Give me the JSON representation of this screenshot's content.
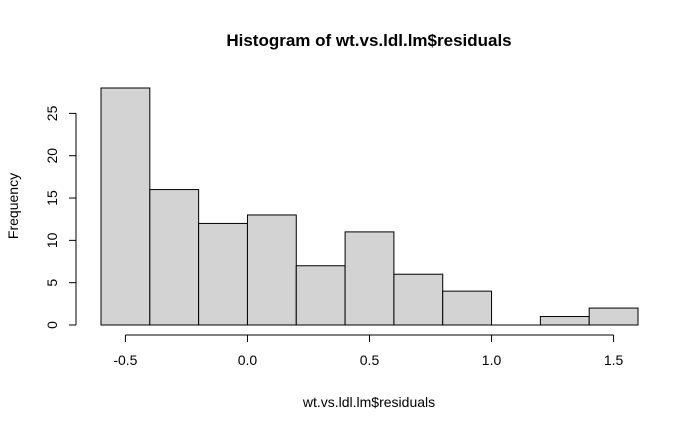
{
  "chart_data": {
    "type": "bar",
    "title": "Histogram of wt.vs.ldl.lm$residuals",
    "xlabel": "wt.vs.ldl.lm$residuals",
    "ylabel": "Frequency",
    "bins": [
      {
        "start": -0.6,
        "end": -0.4,
        "count": 28
      },
      {
        "start": -0.4,
        "end": -0.2,
        "count": 16
      },
      {
        "start": -0.2,
        "end": 0.0,
        "count": 12
      },
      {
        "start": 0.0,
        "end": 0.2,
        "count": 13
      },
      {
        "start": 0.2,
        "end": 0.4,
        "count": 7
      },
      {
        "start": 0.4,
        "end": 0.6,
        "count": 11
      },
      {
        "start": 0.6,
        "end": 0.8,
        "count": 6
      },
      {
        "start": 0.8,
        "end": 1.0,
        "count": 4
      },
      {
        "start": 1.0,
        "end": 1.2,
        "count": 0
      },
      {
        "start": 1.2,
        "end": 1.4,
        "count": 1
      },
      {
        "start": 1.4,
        "end": 1.6,
        "count": 2
      }
    ],
    "x_ticks": [
      -0.5,
      0.0,
      0.5,
      1.0,
      1.5
    ],
    "x_tick_labels": [
      "-0.5",
      "0.0",
      "0.5",
      "1.0",
      "1.5"
    ],
    "y_ticks": [
      0,
      5,
      10,
      15,
      20,
      25
    ],
    "y_tick_labels": [
      "0",
      "5",
      "10",
      "15",
      "20",
      "25"
    ],
    "xlim": [
      -0.6,
      1.6
    ],
    "ylim": [
      0,
      28
    ],
    "grid": false,
    "bar_color": "#d3d3d3",
    "edge_color": "#000000"
  }
}
